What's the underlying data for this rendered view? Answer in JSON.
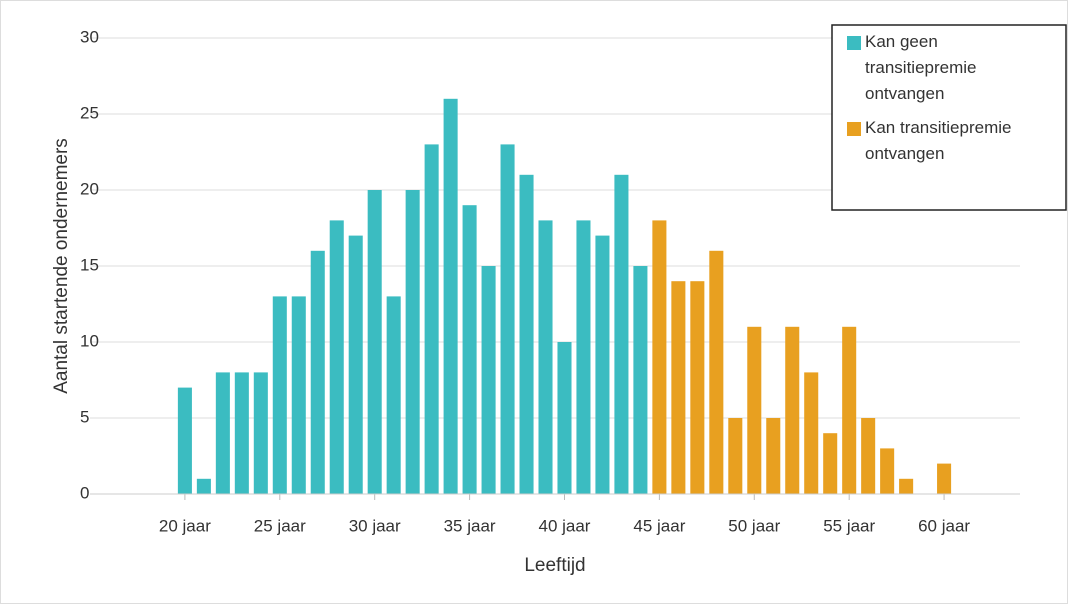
{
  "chart_data": {
    "type": "bar",
    "x": [
      20,
      21,
      22,
      23,
      24,
      25,
      26,
      27,
      28,
      29,
      30,
      31,
      32,
      33,
      34,
      35,
      36,
      37,
      38,
      39,
      40,
      41,
      42,
      43,
      44,
      45,
      46,
      47,
      48,
      49,
      50,
      51,
      52,
      53,
      54,
      55,
      56,
      57,
      58,
      59,
      60
    ],
    "series": [
      {
        "name": "Kan geen transitiepremie ontvangen",
        "color": "#3bbcc1",
        "values": [
          7,
          1,
          8,
          8,
          8,
          13,
          13,
          16,
          18,
          17,
          20,
          13,
          20,
          23,
          26,
          19,
          15,
          23,
          21,
          18,
          10,
          18,
          17,
          21,
          15,
          null,
          null,
          null,
          null,
          null,
          null,
          null,
          null,
          null,
          null,
          null,
          null,
          null,
          null,
          null,
          null
        ]
      },
      {
        "name": "Kan transitiepremie ontvangen",
        "color": "#e8a020",
        "values": [
          null,
          null,
          null,
          null,
          null,
          null,
          null,
          null,
          null,
          null,
          null,
          null,
          null,
          null,
          null,
          null,
          null,
          null,
          null,
          null,
          null,
          null,
          null,
          null,
          null,
          18,
          14,
          14,
          16,
          5,
          11,
          5,
          11,
          8,
          4,
          11,
          5,
          3,
          1,
          0,
          2
        ]
      }
    ],
    "x_label": "Leeftijd",
    "y_label": "Aantal startende ondernemers",
    "xlim": [
      15,
      64
    ],
    "xticks": [
      {
        "value": 20,
        "label": "20 jaar"
      },
      {
        "value": 25,
        "label": "25 jaar"
      },
      {
        "value": 30,
        "label": "30 jaar"
      },
      {
        "value": 35,
        "label": "35 jaar"
      },
      {
        "value": 40,
        "label": "40 jaar"
      },
      {
        "value": 45,
        "label": "45 jaar"
      },
      {
        "value": 50,
        "label": "50 jaar"
      },
      {
        "value": 55,
        "label": "55 jaar"
      },
      {
        "value": 60,
        "label": "60 jaar"
      }
    ],
    "ylim": [
      0,
      30
    ],
    "yticks": [
      0,
      5,
      10,
      15,
      20,
      25,
      30
    ],
    "grid": true,
    "legend": "top-right"
  }
}
